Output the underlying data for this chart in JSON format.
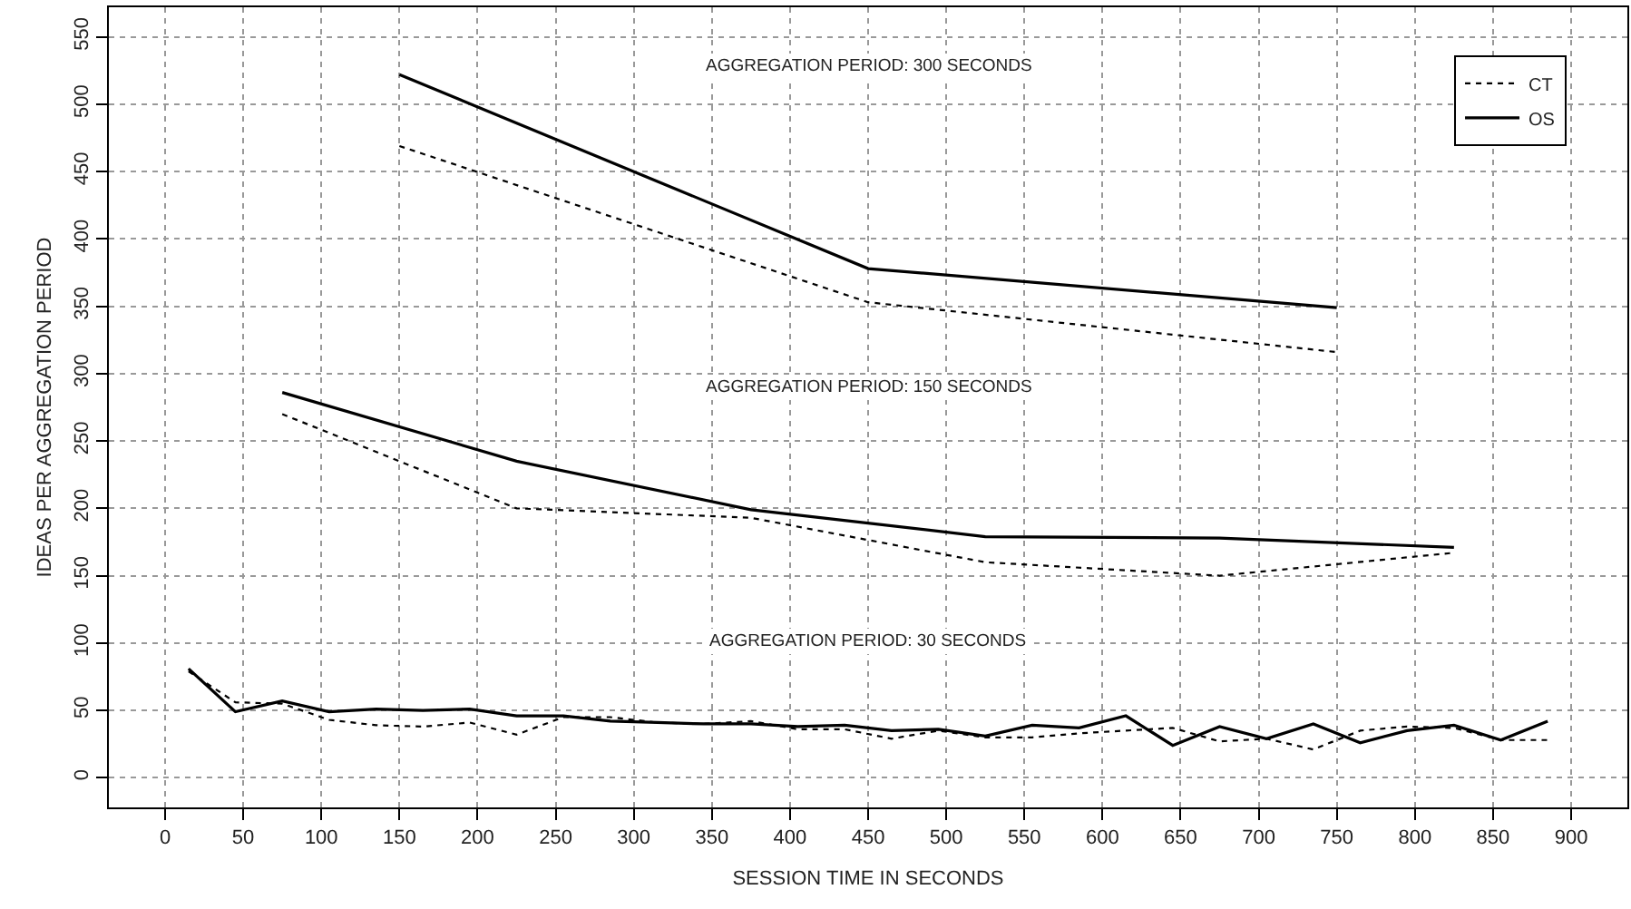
{
  "chart_data": {
    "type": "line",
    "xlabel": "SESSION TIME IN SECONDS",
    "ylabel": "IDEAS PER AGGREGATION PERIOD",
    "xlim": [
      -36,
      936
    ],
    "ylim": [
      -22,
      572
    ],
    "xticks": [
      0,
      50,
      100,
      150,
      200,
      250,
      300,
      350,
      400,
      450,
      500,
      550,
      600,
      650,
      700,
      750,
      800,
      850,
      900
    ],
    "yticks": [
      0,
      50,
      100,
      150,
      200,
      250,
      300,
      350,
      400,
      450,
      500,
      550
    ],
    "grid": true,
    "legend": "top right",
    "marker": "none",
    "annotations": [
      "AGGREGATION PERIOD: 300 SECONDS",
      "AGGREGATION PERIOD: 150 SECONDS",
      "AGGREGATION PERIOD: 30 SECONDS"
    ],
    "series": [
      {
        "name": "CT",
        "color": "#000000",
        "line_style": "dotted",
        "x": [
          150,
          450,
          750
        ],
        "values": [
          469,
          353,
          316
        ]
      },
      {
        "name": "OS",
        "color": "#000000",
        "line_style": "solid",
        "x": [
          150,
          450,
          750
        ],
        "values": [
          522,
          378,
          349
        ]
      },
      {
        "color": "#000000",
        "line_style": "dotted",
        "x": [
          75,
          225,
          375,
          525,
          675,
          825
        ],
        "values": [
          270,
          200,
          193,
          160,
          150,
          167
        ]
      },
      {
        "color": "#000000",
        "line_style": "solid",
        "x": [
          75,
          225,
          375,
          525,
          675,
          825
        ],
        "values": [
          286,
          235,
          199,
          179,
          178,
          171
        ]
      },
      {
        "color": "#000000",
        "line_style": "dotted",
        "x": [
          15,
          45,
          75,
          105,
          135,
          165,
          195,
          225,
          255,
          285,
          315,
          345,
          375,
          405,
          435,
          465,
          495,
          525,
          555,
          585,
          615,
          645,
          675,
          705,
          735,
          765,
          795,
          825,
          855,
          885
        ],
        "values": [
          79,
          56,
          55,
          43,
          39,
          38,
          41,
          32,
          45,
          45,
          41,
          40,
          42,
          36,
          36,
          29,
          35,
          30,
          30,
          33,
          35,
          37,
          27,
          29,
          21,
          35,
          38,
          37,
          28,
          28
        ]
      },
      {
        "color": "#000000",
        "line_style": "solid",
        "x": [
          15,
          45,
          75,
          105,
          135,
          165,
          195,
          225,
          255,
          285,
          315,
          345,
          375,
          405,
          435,
          465,
          495,
          525,
          555,
          585,
          615,
          645,
          675,
          705,
          735,
          765,
          795,
          825,
          855,
          885
        ],
        "values": [
          81,
          49,
          57,
          49,
          51,
          50,
          51,
          46,
          46,
          42,
          41,
          40,
          40,
          38,
          39,
          35,
          36,
          31,
          39,
          37,
          46,
          24,
          38,
          29,
          40,
          26,
          35,
          39,
          28,
          42
        ]
      }
    ]
  }
}
